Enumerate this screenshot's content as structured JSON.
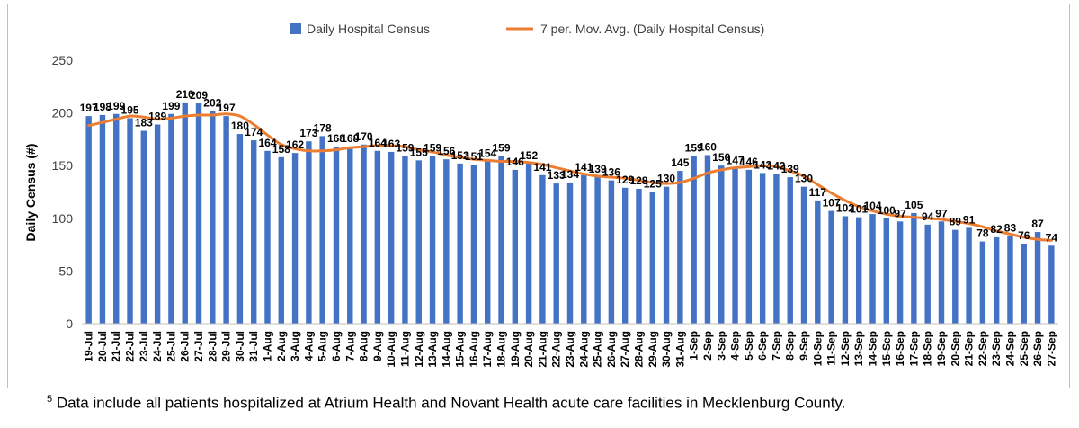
{
  "chart_data": {
    "type": "bar",
    "title": "",
    "xlabel": "",
    "ylabel": "Daily Census (#)",
    "ylim": [
      0,
      250
    ],
    "yticks": [
      0,
      50,
      100,
      150,
      200,
      250
    ],
    "grid": false,
    "legend_position": "top-center",
    "categories": [
      "19-Jul",
      "20-Jul",
      "21-Jul",
      "22-Jul",
      "23-Jul",
      "24-Jul",
      "25-Jul",
      "26-Jul",
      "27-Jul",
      "28-Jul",
      "29-Jul",
      "30-Jul",
      "31-Jul",
      "1-Aug",
      "2-Aug",
      "3-Aug",
      "4-Aug",
      "5-Aug",
      "6-Aug",
      "7-Aug",
      "8-Aug",
      "9-Aug",
      "10-Aug",
      "11-Aug",
      "12-Aug",
      "13-Aug",
      "14-Aug",
      "15-Aug",
      "16-Aug",
      "17-Aug",
      "18-Aug",
      "19-Aug",
      "20-Aug",
      "21-Aug",
      "22-Aug",
      "23-Aug",
      "24-Aug",
      "25-Aug",
      "26-Aug",
      "27-Aug",
      "28-Aug",
      "29-Aug",
      "30-Aug",
      "31-Aug",
      "1-Sep",
      "2-Sep",
      "3-Sep",
      "4-Sep",
      "5-Sep",
      "6-Sep",
      "7-Sep",
      "8-Sep",
      "9-Sep",
      "10-Sep",
      "11-Sep",
      "12-Sep",
      "13-Sep",
      "14-Sep",
      "15-Sep",
      "16-Sep",
      "17-Sep",
      "18-Sep",
      "19-Sep",
      "20-Sep",
      "21-Sep",
      "22-Sep",
      "23-Sep",
      "24-Sep",
      "25-Sep",
      "26-Sep",
      "27-Sep"
    ],
    "series": [
      {
        "name": "Daily Hospital Census",
        "kind": "bar",
        "color": "#4472c4",
        "values": [
          197,
          198,
          199,
          195,
          183,
          189,
          199,
          210,
          209,
          202,
          197,
          180,
          174,
          164,
          158,
          162,
          173,
          178,
          168,
          168,
          170,
          164,
          163,
          159,
          155,
          159,
          156,
          152,
          151,
          154,
          159,
          146,
          152,
          141,
          133,
          134,
          141,
          139,
          136,
          129,
          128,
          125,
          130,
          145,
          159,
          160,
          150,
          147,
          146,
          143,
          142,
          139,
          130,
          117,
          107,
          102,
          101,
          104,
          100,
          97,
          105,
          94,
          97,
          89,
          91,
          78,
          82,
          83,
          76,
          87,
          74
        ]
      },
      {
        "name": "7 per. Mov. Avg. (Daily Hospital Census)",
        "kind": "line",
        "color": "#ed7d31",
        "values": [
          188,
          191,
          194,
          197,
          196,
          194,
          195,
          197,
          198,
          198,
          199,
          197,
          189,
          179,
          170,
          166,
          164,
          164,
          165,
          167,
          168,
          169,
          169,
          168,
          165,
          163,
          160,
          158,
          156,
          155,
          154,
          154,
          153,
          151,
          148,
          145,
          142,
          140,
          139,
          138,
          136,
          134,
          133,
          134,
          138,
          143,
          146,
          148,
          149,
          150,
          149,
          145,
          140,
          132,
          124,
          117,
          111,
          107,
          104,
          102,
          101,
          100,
          99,
          97,
          95,
          92,
          88,
          85,
          82,
          80,
          79
        ]
      }
    ]
  },
  "footnote": {
    "marker": "5",
    "text": " Data include all patients hospitalized at Atrium Health and Novant Health acute care facilities in Mecklenburg County."
  }
}
